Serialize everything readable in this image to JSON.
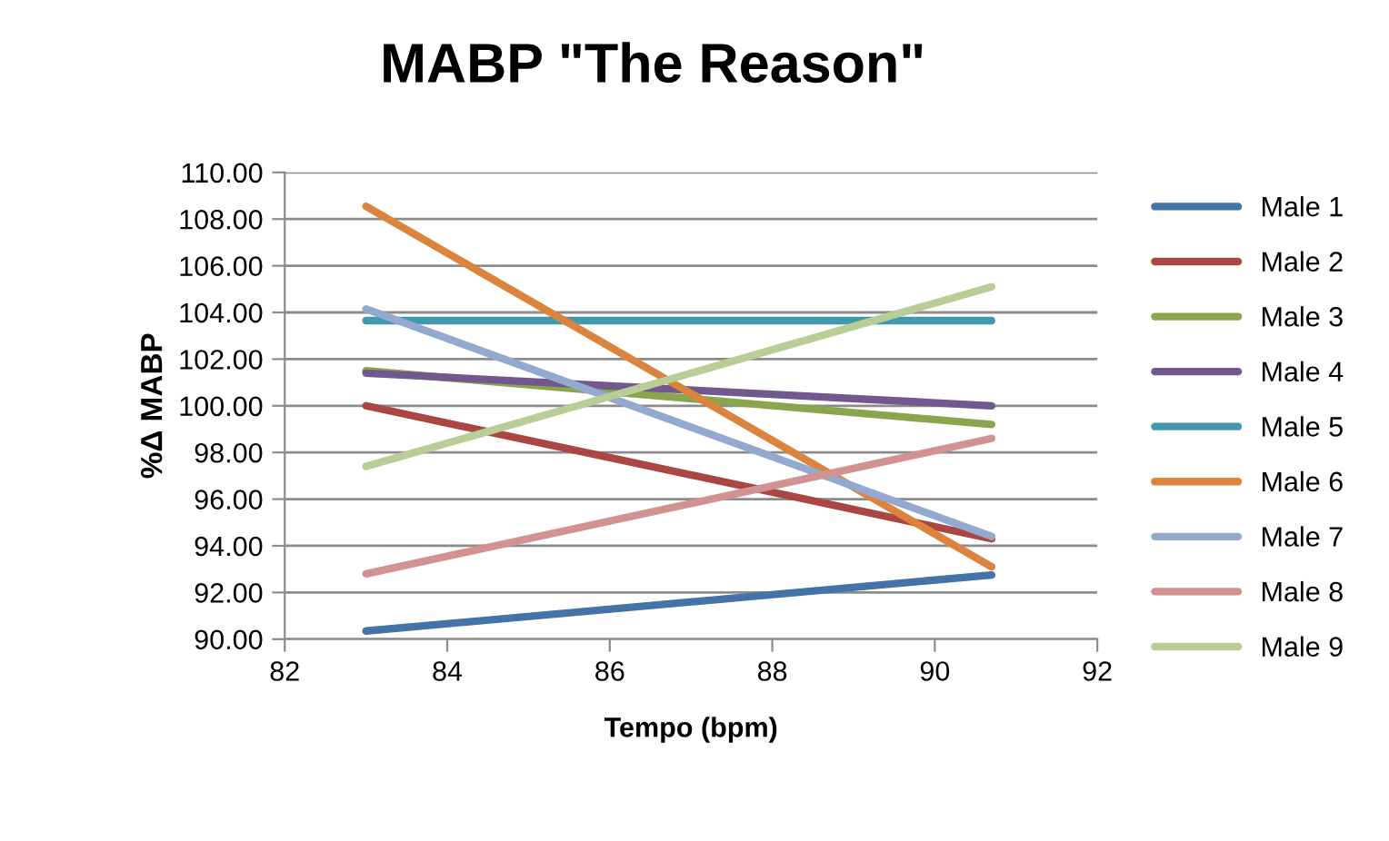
{
  "chart_data": {
    "type": "line",
    "title": "MABP \"The Reason\"",
    "xlabel": "Tempo (bpm)",
    "ylabel": "%Δ MABP",
    "x": [
      83,
      90.7
    ],
    "series": [
      {
        "name": "Male 1",
        "color": "#4572a7",
        "values": [
          90.35,
          92.75
        ]
      },
      {
        "name": "Male 2",
        "color": "#aa4643",
        "values": [
          100.0,
          94.3
        ]
      },
      {
        "name": "Male 3",
        "color": "#89a54e",
        "values": [
          101.5,
          99.2
        ]
      },
      {
        "name": "Male 4",
        "color": "#71588f",
        "values": [
          101.4,
          100.0
        ]
      },
      {
        "name": "Male 5",
        "color": "#4198af",
        "values": [
          103.65,
          103.65
        ]
      },
      {
        "name": "Male 6",
        "color": "#db843d",
        "values": [
          108.55,
          93.1
        ]
      },
      {
        "name": "Male 7",
        "color": "#93a9cf",
        "values": [
          104.15,
          94.4
        ]
      },
      {
        "name": "Male 8",
        "color": "#d19392",
        "values": [
          92.8,
          98.6
        ]
      },
      {
        "name": "Male 9",
        "color": "#b9cd96",
        "values": [
          97.4,
          105.1
        ]
      }
    ],
    "xlim": [
      82,
      92
    ],
    "xticks": [
      82,
      84,
      86,
      88,
      90,
      92
    ],
    "ylim": [
      90,
      110
    ],
    "yticks": [
      {
        "value": 90,
        "label": "90.00"
      },
      {
        "value": 92,
        "label": "92.00"
      },
      {
        "value": 94,
        "label": "94.00"
      },
      {
        "value": 96,
        "label": "96.00"
      },
      {
        "value": 98,
        "label": "98.00"
      },
      {
        "value": 100,
        "label": "100.00"
      },
      {
        "value": 102,
        "label": "102.00"
      },
      {
        "value": 104,
        "label": "104.00"
      },
      {
        "value": 106,
        "label": "106.00"
      },
      {
        "value": 108,
        "label": "108.00"
      },
      {
        "value": 110,
        "label": "110.00"
      }
    ],
    "grid": "y",
    "legend": "right",
    "marker": "none",
    "line_style": "solid"
  }
}
